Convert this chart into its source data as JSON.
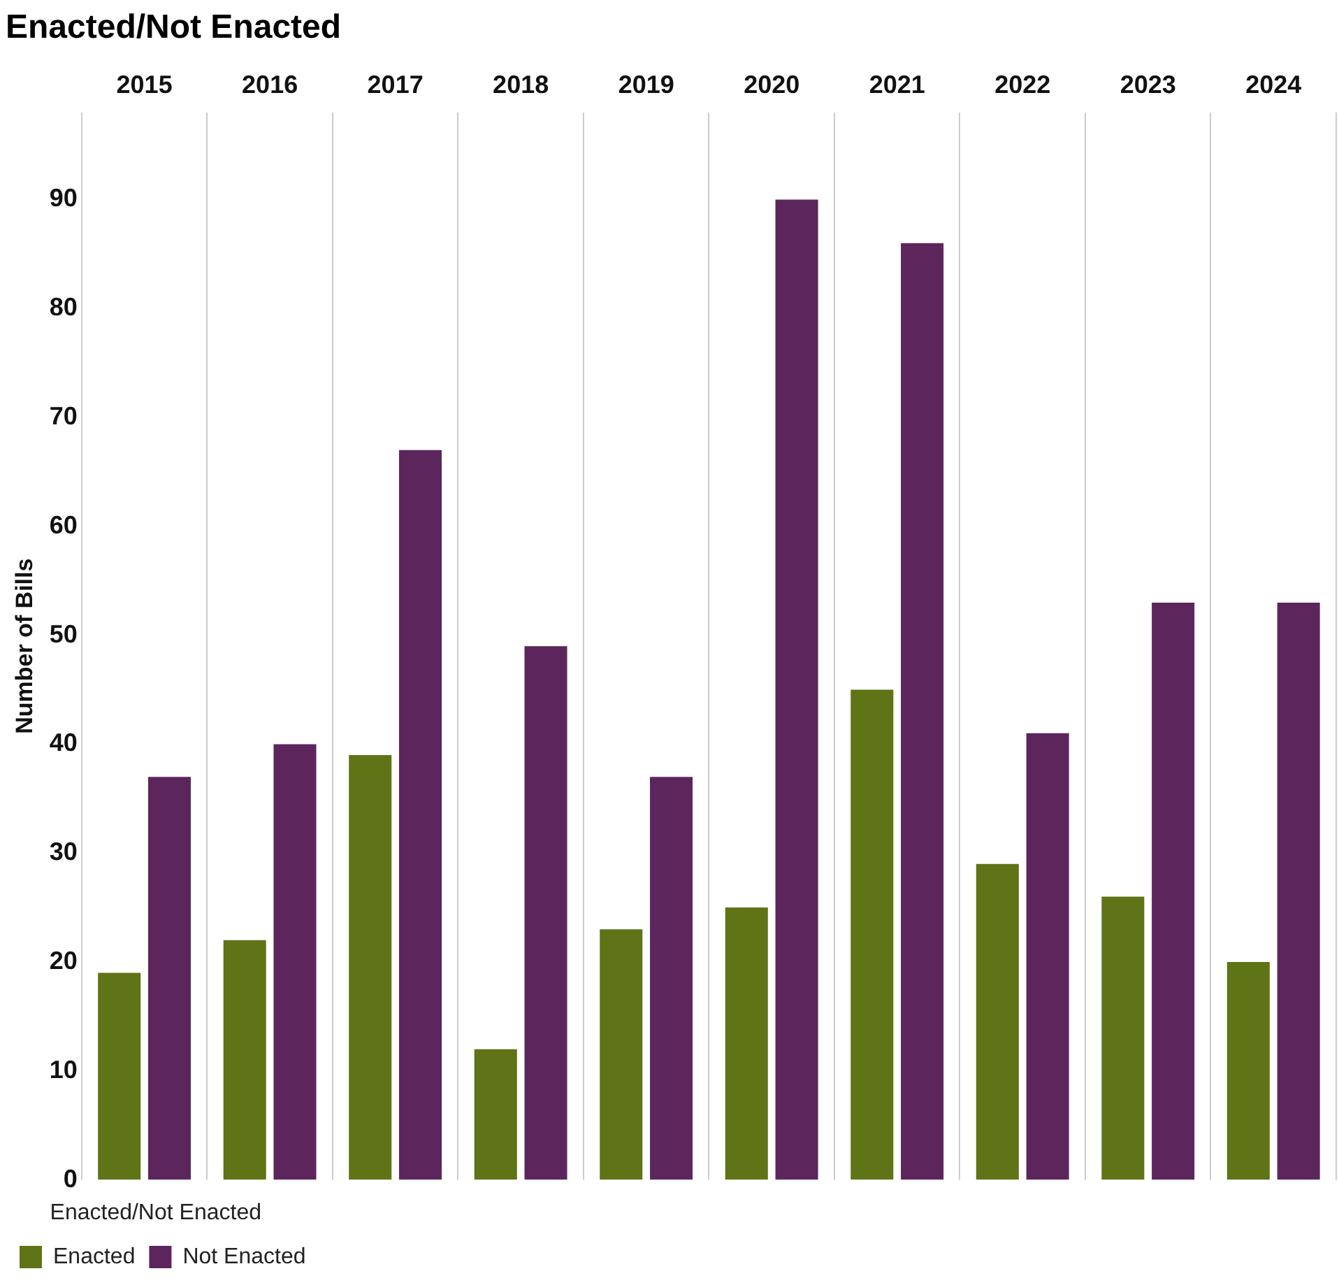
{
  "chart_data": {
    "type": "bar",
    "title": "Enacted/Not Enacted",
    "ylabel": "Number of Bills",
    "legend_title": "Enacted/Not Enacted",
    "categories": [
      "2015",
      "2016",
      "2017",
      "2018",
      "2019",
      "2020",
      "2021",
      "2022",
      "2023",
      "2024"
    ],
    "series": [
      {
        "name": "Enacted",
        "color": "#5f7317",
        "values": [
          19,
          22,
          39,
          12,
          23,
          25,
          45,
          29,
          26,
          20
        ]
      },
      {
        "name": "Not Enacted",
        "color": "#5c265c",
        "values": [
          37,
          40,
          67,
          49,
          37,
          90,
          86,
          41,
          53,
          53
        ]
      }
    ],
    "ylim": [
      0,
      98
    ],
    "yticks": [
      0,
      10,
      20,
      30,
      40,
      50,
      60,
      70,
      80,
      90
    ],
    "grid": "x",
    "legend": "bottom left"
  }
}
